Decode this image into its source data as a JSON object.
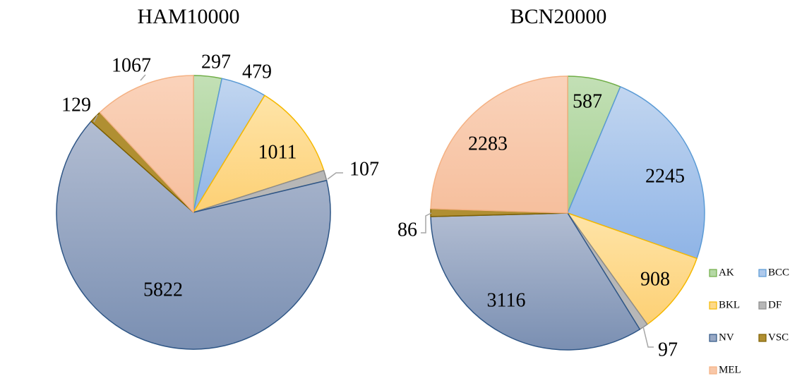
{
  "chart_data": [
    {
      "type": "pie",
      "title": "HAM10000",
      "categories": [
        "AK",
        "BCC",
        "BKL",
        "DF",
        "NV",
        "VSC",
        "MEL"
      ],
      "values": [
        297,
        479,
        1011,
        107,
        5822,
        129,
        1067
      ],
      "labels": [
        "297",
        "479",
        "1011",
        "107",
        "5822",
        "129",
        "1067"
      ]
    },
    {
      "type": "pie",
      "title": "BCN20000",
      "categories": [
        "AK",
        "BCC",
        "BKL",
        "DF",
        "NV",
        "VSC",
        "MEL"
      ],
      "values": [
        587,
        2245,
        908,
        97,
        3116,
        86,
        2283
      ],
      "labels": [
        "587",
        "2245",
        "908",
        "97",
        "3116",
        "86",
        "2283"
      ]
    }
  ],
  "legend": {
    "placement": "bottom-right",
    "items": [
      "AK",
      "BCC",
      "BKL",
      "DF",
      "NV",
      "VSC",
      "MEL"
    ]
  },
  "colors": {
    "AK": {
      "fill": "#b5d8a5",
      "stroke": "#70ad47"
    },
    "BCC": {
      "fill": "#aec9ec",
      "stroke": "#5b9bd5"
    },
    "BKL": {
      "fill": "#fdd98a",
      "stroke": "#f5b800"
    },
    "DF": {
      "fill": "#b7b7b7",
      "stroke": "#8c8c8c"
    },
    "NV": {
      "fill": "#98a8c4",
      "stroke": "#2f5686"
    },
    "VSC": {
      "fill": "#b08f32",
      "stroke": "#7f6000"
    },
    "MEL": {
      "fill": "#f8c7a8",
      "stroke": "#f4b183"
    }
  }
}
